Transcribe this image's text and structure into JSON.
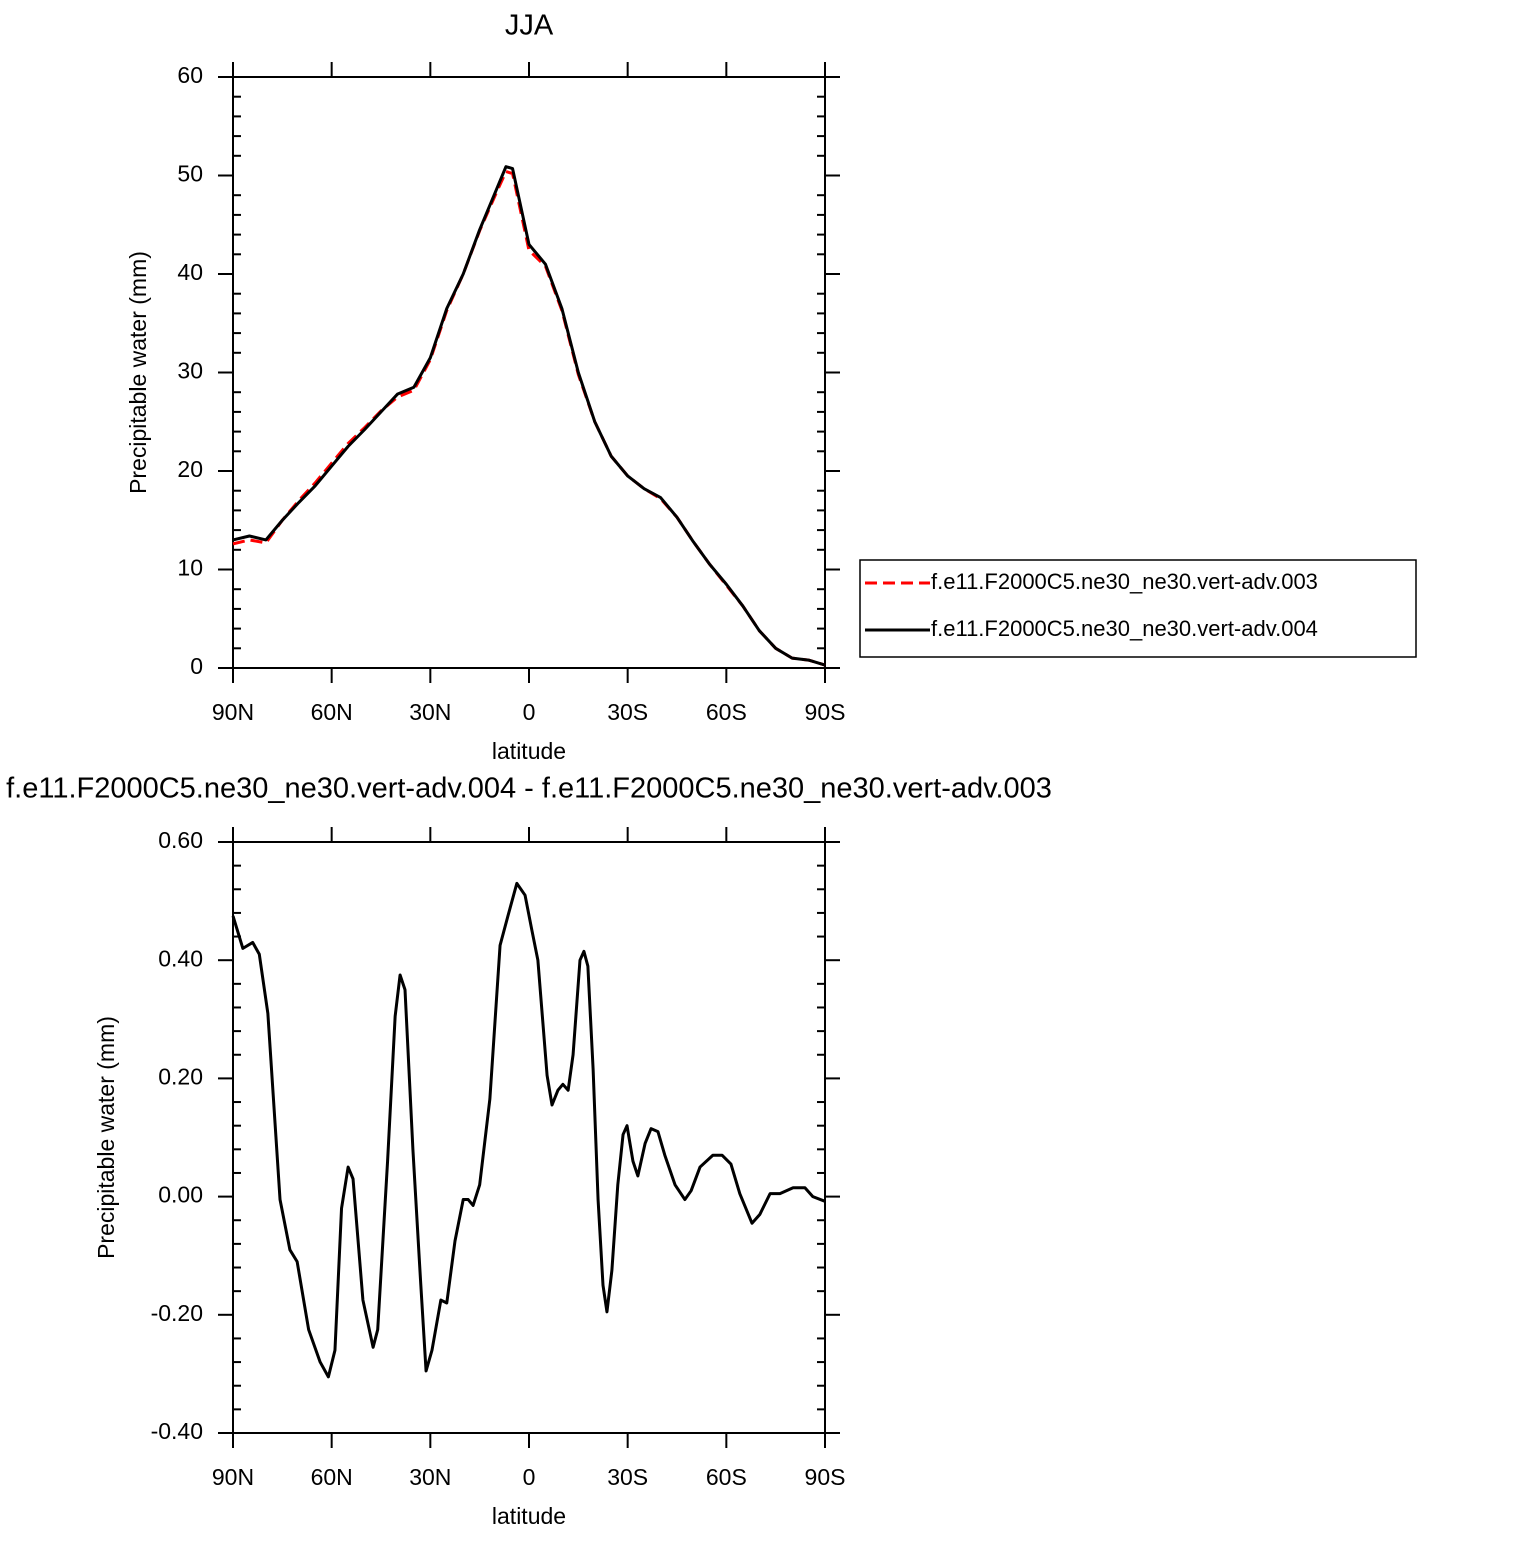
{
  "chart_data": [
    {
      "type": "line",
      "title": "JJA",
      "xlabel": "latitude",
      "ylabel": "Precipitable water (mm)",
      "x": [
        90,
        85,
        80,
        75,
        70,
        65,
        60,
        55,
        50,
        45,
        40,
        35,
        30,
        25,
        20,
        15,
        10,
        7,
        5,
        0,
        -5,
        -10,
        -15,
        -20,
        -25,
        -30,
        -35,
        -40,
        -45,
        -50,
        -55,
        -60,
        -65,
        -70,
        -75,
        -80,
        -85,
        -90
      ],
      "series": [
        {
          "name": "f.e11.F2000C5.ne30_ne30.vert-adv.003",
          "color": "#ff0000",
          "line_style": "dashed",
          "values": [
            12.6,
            13.0,
            12.7,
            15.0,
            17.0,
            18.8,
            20.8,
            22.8,
            24.4,
            26.1,
            27.5,
            28.2,
            31.3,
            36.3,
            40.0,
            44.4,
            48.2,
            50.4,
            50.2,
            42.4,
            40.8,
            36.3,
            29.8,
            25.0,
            21.5,
            19.5,
            18.2,
            17.2,
            15.3,
            12.8,
            10.5,
            8.4,
            6.3,
            3.8,
            2.0,
            1.0,
            0.8,
            0.3
          ]
        },
        {
          "name": "f.e11.F2000C5.ne30_ne30.vert-adv.004",
          "color": "#000000",
          "line_style": "solid",
          "values": [
            13.0,
            13.4,
            13.0,
            15.0,
            16.8,
            18.5,
            20.5,
            22.5,
            24.2,
            26.0,
            27.8,
            28.5,
            31.5,
            36.5,
            40.0,
            44.5,
            48.5,
            50.9,
            50.7,
            43.0,
            41.0,
            36.5,
            30.0,
            25.0,
            21.5,
            19.5,
            18.2,
            17.3,
            15.3,
            12.8,
            10.5,
            8.5,
            6.3,
            3.8,
            2.0,
            1.0,
            0.8,
            0.3
          ]
        }
      ],
      "xlim": [
        90,
        -90
      ],
      "xticks": [
        {
          "value": 90,
          "label": "90N"
        },
        {
          "value": 60,
          "label": "60N"
        },
        {
          "value": 30,
          "label": "30N"
        },
        0,
        {
          "value": -30,
          "label": "30S"
        },
        {
          "value": -60,
          "label": "60S"
        },
        {
          "value": -90,
          "label": "90S"
        }
      ],
      "ylim": [
        0,
        60
      ],
      "yticks": [
        0,
        10,
        20,
        30,
        40,
        50,
        60
      ],
      "legend": "right"
    },
    {
      "type": "line",
      "title": "f.e11.F2000C5.ne30_ne30.vert-adv.004 - f.e11.F2000C5.ne30_ne30.vert-adv.003",
      "xlabel": "latitude",
      "ylabel": "Precipitable water (mm)",
      "x": [
        90,
        87,
        84,
        82,
        79.4,
        75.7,
        72.7,
        70.5,
        67,
        63.5,
        61,
        59,
        57,
        55,
        53.5,
        50.5,
        47.4,
        46,
        43,
        40.7,
        39.2,
        37.7,
        35.3,
        33,
        31.3,
        29.5,
        26.8,
        25,
        22.5,
        20,
        18.5,
        17,
        15,
        11.9,
        8.8,
        6.4,
        3.7,
        1.2,
        -0.9,
        -2.7,
        -5.5,
        -7,
        -8.8,
        -10.3,
        -11.9,
        -13.4,
        -15.5,
        -16.7,
        -17.9,
        -19.5,
        -21,
        -22.5,
        -23.7,
        -25.2,
        -27,
        -28.6,
        -29.8,
        -31.6,
        -33.1,
        -35.3,
        -37.1,
        -39.2,
        -41.3,
        -44.4,
        -47.4,
        -49.3,
        -52,
        -55.9,
        -58.7,
        -61.4,
        -64.1,
        -67.8,
        -70.2,
        -73.3,
        -76.3,
        -80.3,
        -83.9,
        -86.3,
        -90
      ],
      "color": "#000000",
      "values": [
        0.475,
        0.42,
        0.43,
        0.41,
        0.31,
        -0.005,
        -0.09,
        -0.11,
        -0.225,
        -0.28,
        -0.305,
        -0.26,
        -0.02,
        0.05,
        0.03,
        -0.175,
        -0.255,
        -0.225,
        0.06,
        0.305,
        0.375,
        0.35,
        0.08,
        -0.14,
        -0.295,
        -0.26,
        -0.175,
        -0.18,
        -0.075,
        -0.005,
        -0.005,
        -0.015,
        0.02,
        0.165,
        0.425,
        0.475,
        0.53,
        0.51,
        0.45,
        0.4,
        0.205,
        0.155,
        0.18,
        0.19,
        0.18,
        0.24,
        0.4,
        0.415,
        0.39,
        0.215,
        -0.005,
        -0.15,
        -0.195,
        -0.125,
        0.02,
        0.105,
        0.12,
        0.06,
        0.035,
        0.09,
        0.115,
        0.11,
        0.07,
        0.02,
        -0.005,
        0.01,
        0.05,
        0.07,
        0.07,
        0.055,
        0.005,
        -0.045,
        -0.03,
        0.005,
        0.005,
        0.015,
        0.015,
        0,
        -0.008
      ],
      "xlim": [
        90,
        -90
      ],
      "xticks": [
        {
          "value": 90,
          "label": "90N"
        },
        {
          "value": 60,
          "label": "60N"
        },
        {
          "value": 30,
          "label": "30N"
        },
        0,
        {
          "value": -30,
          "label": "30S"
        },
        {
          "value": -60,
          "label": "60S"
        },
        {
          "value": -90,
          "label": "90S"
        }
      ],
      "ylim": [
        -0.4,
        0.6
      ],
      "yticks": [
        {
          "value": -0.4,
          "label": "-0.40"
        },
        {
          "value": -0.2,
          "label": "-0.20"
        },
        {
          "value": 0,
          "label": "0.00"
        },
        {
          "value": 0.2,
          "label": "0.20"
        },
        {
          "value": 0.4,
          "label": "0.40"
        },
        {
          "value": 0.6,
          "label": "0.60"
        }
      ]
    }
  ]
}
